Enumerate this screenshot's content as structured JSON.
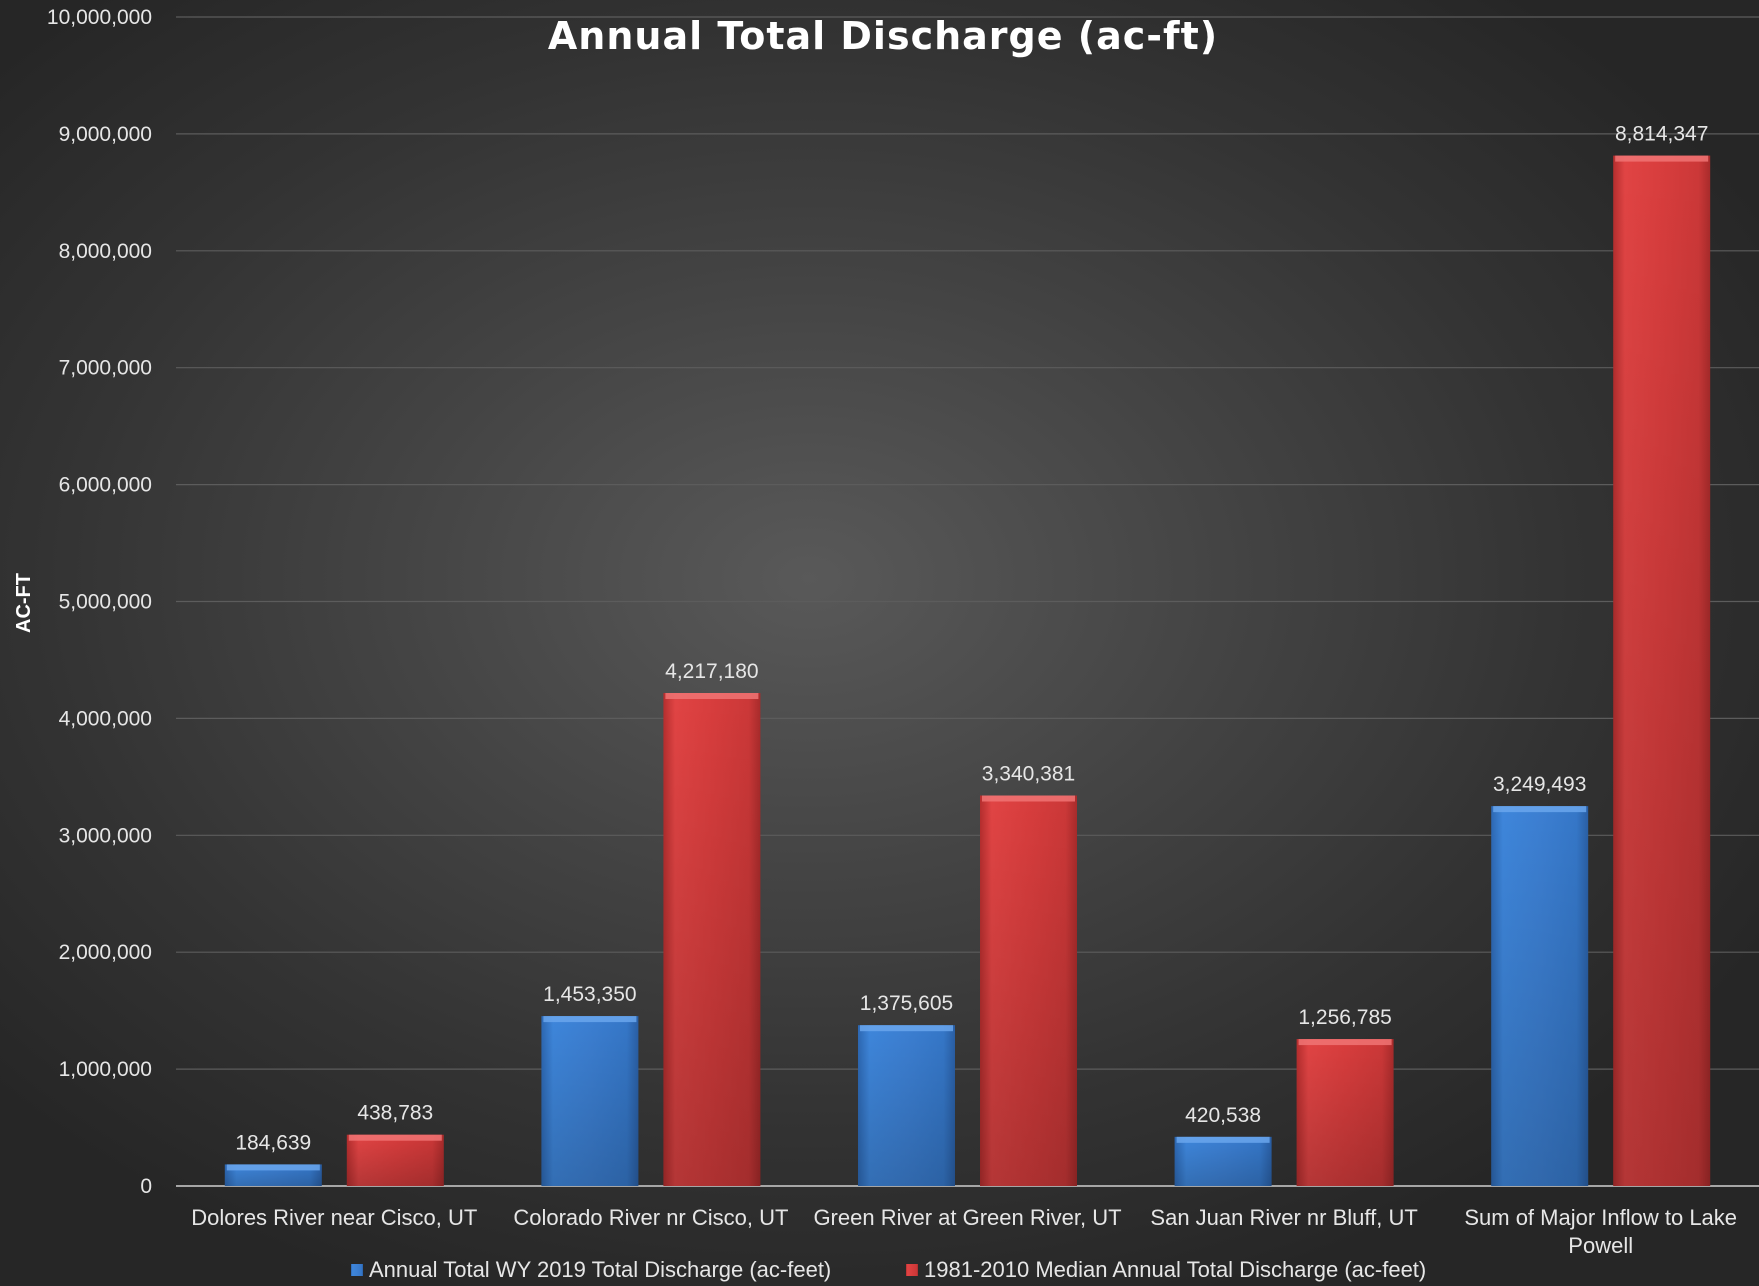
{
  "chart_data": {
    "type": "bar",
    "title": "Annual Total Discharge (ac-ft)",
    "xlabel": "",
    "ylabel": "AC-FT",
    "ylim": [
      0,
      10000000
    ],
    "ytick_values": [
      0,
      1000000,
      2000000,
      3000000,
      4000000,
      5000000,
      6000000,
      7000000,
      8000000,
      9000000,
      10000000
    ],
    "ytick_labels": [
      "0",
      "1,000,000",
      "2,000,000",
      "3,000,000",
      "4,000,000",
      "5,000,000",
      "6,000,000",
      "7,000,000",
      "8,000,000",
      "9,000,000",
      "10,000,000"
    ],
    "categories": [
      [
        "Dolores River near Cisco, UT"
      ],
      [
        "Colorado River nr Cisco, UT"
      ],
      [
        "Green River at Green River, UT"
      ],
      [
        "San Juan River nr Bluff, UT"
      ],
      [
        "Sum of Major Inflow to Lake",
        "Powell"
      ]
    ],
    "series": [
      {
        "name": "Annual Total WY 2019 Total Discharge (ac-feet)",
        "color": "#3a7fd5",
        "values": [
          184639,
          1453350,
          1375605,
          420538,
          3249493
        ],
        "labels": [
          "184,639",
          "1,453,350",
          "1,375,605",
          "420,538",
          "3,249,493"
        ]
      },
      {
        "name": "1981-2010 Median Annual Total Discharge (ac-feet)",
        "color": "#d93c3c",
        "values": [
          438783,
          4217180,
          3340381,
          1256785,
          8814347
        ],
        "labels": [
          "438,783",
          "4,217,180",
          "3,340,381",
          "1,256,785",
          "8,814,347"
        ]
      }
    ],
    "grid": true,
    "legend_position": "bottom"
  }
}
